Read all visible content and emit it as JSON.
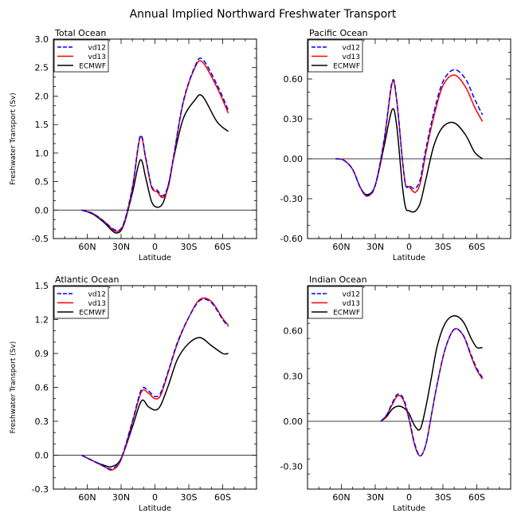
{
  "figure_title": "Annual Implied Northward Freshwater Transport",
  "colors": {
    "vd12": "#0000ff",
    "vd13": "#ff0000",
    "ecmwf": "#000000",
    "axis": "#000000"
  },
  "chart_data": [
    {
      "type": "line",
      "title": "Total Ocean",
      "xlabel": "Latitude",
      "ylabel": "Freshwater Transport (Sv)",
      "xlim": [
        -90,
        90
      ],
      "ylim": [
        -0.5,
        3.0
      ],
      "yticks": [
        -0.5,
        0.0,
        0.5,
        1.0,
        1.5,
        2.0,
        2.5,
        3.0
      ],
      "ytick_labels": [
        "-0.5",
        "0.0",
        "0.5",
        "1.0",
        "1.5",
        "2.0",
        "2.5",
        "3.0"
      ],
      "xticks": [
        -60,
        -30,
        0,
        30,
        60
      ],
      "xtick_labels": [
        "60N",
        "30N",
        "0",
        "30S",
        "60S"
      ],
      "legend": [
        "vd12",
        "vd13",
        "ECMWF"
      ],
      "series": [
        {
          "name": "vd12",
          "style": "dashed",
          "x": [
            -65,
            -55,
            -45,
            -35,
            -28,
            -20,
            -13,
            -8,
            -3,
            2,
            7,
            12,
            17,
            25,
            35,
            42,
            55,
            65
          ],
          "y": [
            0,
            -0.06,
            -0.2,
            -0.35,
            -0.25,
            0.4,
            1.3,
            0.9,
            0.42,
            0.35,
            0.25,
            0.45,
            1.0,
            1.9,
            2.5,
            2.65,
            2.2,
            1.75
          ]
        },
        {
          "name": "vd13",
          "style": "solid",
          "x": [
            -65,
            -55,
            -45,
            -35,
            -28,
            -20,
            -13,
            -8,
            -3,
            2,
            7,
            12,
            17,
            25,
            35,
            42,
            55,
            65
          ],
          "y": [
            0,
            -0.06,
            -0.2,
            -0.37,
            -0.26,
            0.38,
            1.28,
            0.88,
            0.4,
            0.32,
            0.22,
            0.42,
            0.98,
            1.88,
            2.48,
            2.6,
            2.15,
            1.7
          ]
        },
        {
          "name": "ECMWF",
          "style": "solid",
          "x": [
            -65,
            -55,
            -45,
            -35,
            -28,
            -20,
            -13,
            -8,
            -3,
            2,
            7,
            12,
            17,
            25,
            35,
            42,
            55,
            65
          ],
          "y": [
            0,
            -0.07,
            -0.22,
            -0.4,
            -0.28,
            0.3,
            0.88,
            0.55,
            0.15,
            0.05,
            0.12,
            0.45,
            0.95,
            1.6,
            1.92,
            2.0,
            1.55,
            1.38
          ]
        }
      ]
    },
    {
      "type": "line",
      "title": "Pacific Ocean",
      "xlabel": "Latitude",
      "ylabel": "",
      "xlim": [
        -90,
        90
      ],
      "ylim": [
        -0.6,
        0.9
      ],
      "yticks": [
        -0.6,
        -0.3,
        0.0,
        0.3,
        0.6
      ],
      "ytick_labels": [
        "-0.60",
        "-0.30",
        "0.00",
        "0.30",
        "0.60"
      ],
      "xticks": [
        -60,
        -30,
        0,
        30,
        60
      ],
      "xtick_labels": [
        "60N",
        "30N",
        "0",
        "30S",
        "60S"
      ],
      "legend": [
        "vd12",
        "vd13",
        "ECMWF"
      ],
      "series": [
        {
          "name": "vd12",
          "style": "dashed",
          "x": [
            -65,
            -58,
            -50,
            -43,
            -37,
            -30,
            -22,
            -15,
            -11,
            -6,
            -3,
            0,
            3,
            6,
            10,
            15,
            22,
            30,
            40,
            50,
            58,
            65
          ],
          "y": [
            0,
            -0.01,
            -0.08,
            -0.22,
            -0.28,
            -0.2,
            0.15,
            0.58,
            0.45,
            0.0,
            -0.2,
            -0.2,
            -0.22,
            -0.22,
            -0.15,
            0.08,
            0.35,
            0.58,
            0.67,
            0.6,
            0.45,
            0.33
          ]
        },
        {
          "name": "vd13",
          "style": "solid",
          "x": [
            -65,
            -58,
            -50,
            -43,
            -37,
            -30,
            -22,
            -15,
            -11,
            -6,
            -3,
            0,
            3,
            6,
            10,
            15,
            22,
            30,
            40,
            50,
            58,
            65
          ],
          "y": [
            0,
            -0.01,
            -0.08,
            -0.22,
            -0.28,
            -0.2,
            0.14,
            0.57,
            0.44,
            0.0,
            -0.2,
            -0.21,
            -0.24,
            -0.25,
            -0.18,
            0.05,
            0.32,
            0.55,
            0.63,
            0.54,
            0.39,
            0.28
          ]
        },
        {
          "name": "ECMWF",
          "style": "solid",
          "x": [
            -65,
            -58,
            -50,
            -43,
            -37,
            -30,
            -22,
            -15,
            -11,
            -6,
            -3,
            0,
            3,
            6,
            10,
            15,
            22,
            30,
            40,
            50,
            58,
            65
          ],
          "y": [
            0,
            -0.01,
            -0.08,
            -0.22,
            -0.27,
            -0.2,
            0.1,
            0.37,
            0.25,
            -0.2,
            -0.37,
            -0.39,
            -0.4,
            -0.39,
            -0.33,
            -0.15,
            0.1,
            0.24,
            0.27,
            0.18,
            0.05,
            0.0
          ]
        }
      ]
    },
    {
      "type": "line",
      "title": "Atlantic Ocean",
      "xlabel": "Latitude",
      "ylabel": "Freshwater Transport (Sv)",
      "xlim": [
        -90,
        90
      ],
      "ylim": [
        -0.3,
        1.5
      ],
      "yticks": [
        -0.3,
        0.0,
        0.3,
        0.6,
        0.9,
        1.2,
        1.5
      ],
      "ytick_labels": [
        "-0.3",
        "0.0",
        "0.3",
        "0.6",
        "0.9",
        "1.2",
        "1.5"
      ],
      "xticks": [
        -60,
        -30,
        0,
        30,
        60
      ],
      "xtick_labels": [
        "60N",
        "30N",
        "0",
        "30S",
        "60S"
      ],
      "legend": [
        "vd12",
        "vd13",
        "ECMWF"
      ],
      "series": [
        {
          "name": "vd12",
          "style": "dashed",
          "x": [
            -65,
            -55,
            -45,
            -38,
            -30,
            -20,
            -12,
            -6,
            0,
            5,
            12,
            20,
            30,
            40,
            50,
            60,
            65
          ],
          "y": [
            0,
            -0.05,
            -0.1,
            -0.12,
            -0.03,
            0.3,
            0.58,
            0.57,
            0.52,
            0.55,
            0.75,
            1.0,
            1.22,
            1.37,
            1.35,
            1.2,
            1.14
          ]
        },
        {
          "name": "vd13",
          "style": "solid",
          "x": [
            -65,
            -55,
            -45,
            -38,
            -30,
            -20,
            -12,
            -6,
            0,
            5,
            12,
            20,
            30,
            40,
            50,
            60,
            65
          ],
          "y": [
            0,
            -0.05,
            -0.1,
            -0.13,
            -0.04,
            0.29,
            0.56,
            0.55,
            0.5,
            0.53,
            0.74,
            0.99,
            1.22,
            1.38,
            1.36,
            1.21,
            1.15
          ]
        },
        {
          "name": "ECMWF",
          "style": "solid",
          "x": [
            -65,
            -55,
            -45,
            -38,
            -30,
            -20,
            -12,
            -6,
            0,
            5,
            12,
            20,
            30,
            40,
            50,
            60,
            65
          ],
          "y": [
            0,
            -0.05,
            -0.09,
            -0.1,
            -0.03,
            0.25,
            0.48,
            0.43,
            0.4,
            0.44,
            0.62,
            0.85,
            0.99,
            1.04,
            0.97,
            0.9,
            0.9
          ]
        }
      ]
    },
    {
      "type": "line",
      "title": "Indian Ocean",
      "xlabel": "Latitude",
      "ylabel": "",
      "xlim": [
        -90,
        90
      ],
      "ylim": [
        -0.45,
        0.9
      ],
      "yticks": [
        -0.3,
        0.0,
        0.3,
        0.6
      ],
      "ytick_labels": [
        "-0.30",
        "0.00",
        "0.30",
        "0.60"
      ],
      "xticks": [
        -60,
        -30,
        0,
        30,
        60
      ],
      "xtick_labels": [
        "60N",
        "30N",
        "0",
        "30S",
        "60S"
      ],
      "legend": [
        "vd12",
        "vd13",
        "ECMWF"
      ],
      "series": [
        {
          "name": "vd12",
          "style": "dashed",
          "x": [
            -25,
            -20,
            -15,
            -10,
            -5,
            0,
            5,
            10,
            15,
            20,
            25,
            32,
            40,
            48,
            55,
            60,
            65
          ],
          "y": [
            0,
            0.04,
            0.12,
            0.18,
            0.15,
            0.02,
            -0.15,
            -0.23,
            -0.15,
            0.05,
            0.25,
            0.48,
            0.61,
            0.57,
            0.44,
            0.35,
            0.29
          ]
        },
        {
          "name": "vd13",
          "style": "solid",
          "x": [
            -25,
            -20,
            -15,
            -10,
            -5,
            0,
            5,
            10,
            15,
            20,
            25,
            32,
            40,
            48,
            55,
            60,
            65
          ],
          "y": [
            0,
            0.04,
            0.11,
            0.17,
            0.14,
            0.01,
            -0.16,
            -0.23,
            -0.15,
            0.05,
            0.25,
            0.48,
            0.61,
            0.57,
            0.43,
            0.34,
            0.28
          ]
        },
        {
          "name": "ECMWF",
          "style": "solid",
          "x": [
            -25,
            -20,
            -15,
            -10,
            -5,
            0,
            5,
            10,
            15,
            20,
            25,
            32,
            40,
            48,
            55,
            60,
            65
          ],
          "y": [
            0,
            0.03,
            0.08,
            0.1,
            0.09,
            0.05,
            -0.03,
            -0.05,
            0.1,
            0.3,
            0.5,
            0.65,
            0.7,
            0.66,
            0.55,
            0.49,
            0.49
          ]
        }
      ]
    }
  ]
}
